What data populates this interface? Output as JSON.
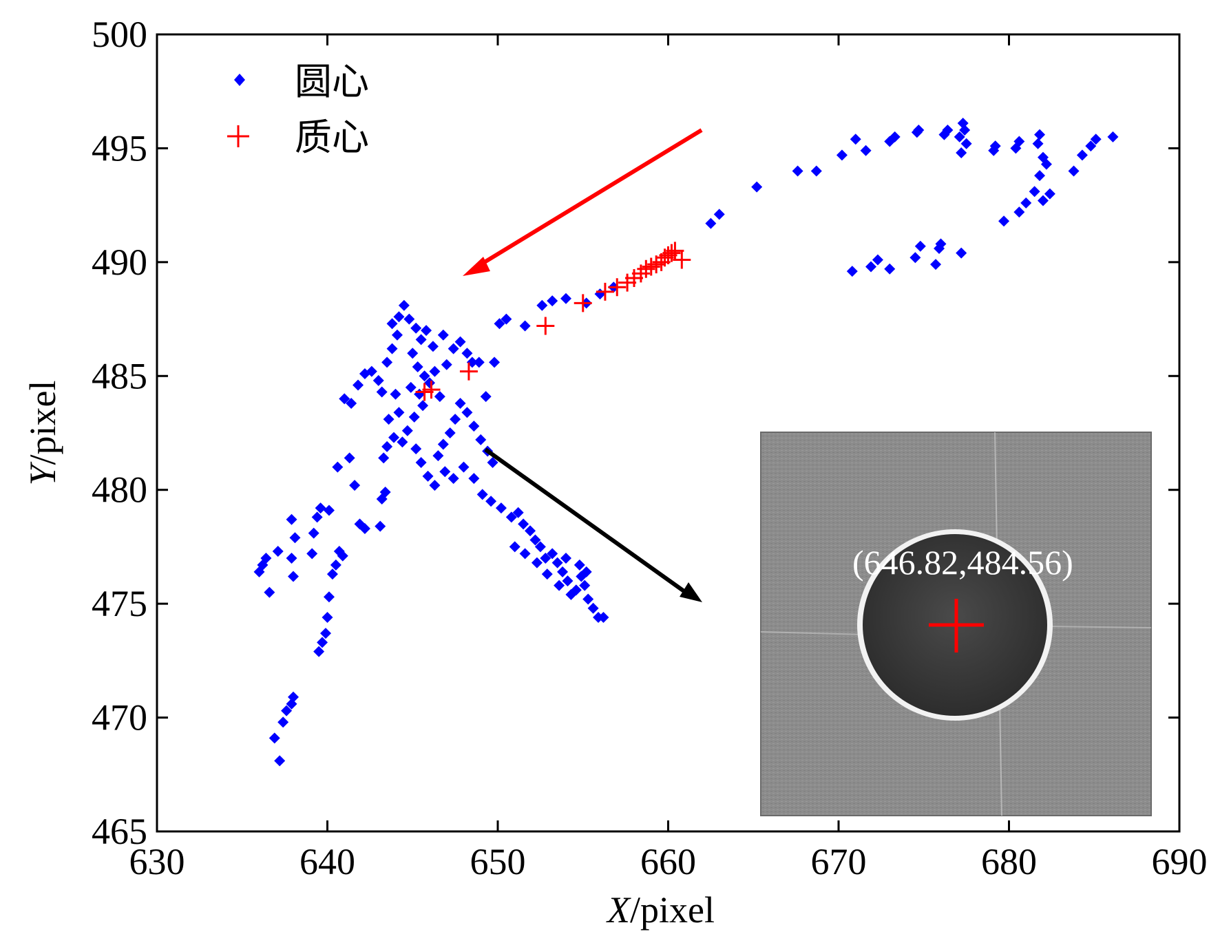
{
  "chart_data": {
    "type": "scatter",
    "xlabel_var": "X",
    "xlabel_unit": "/pixel",
    "ylabel_var": "Y",
    "ylabel_unit": "/pixel",
    "xlim": [
      630,
      690
    ],
    "ylim": [
      465,
      500
    ],
    "xticks": [
      "630",
      "640",
      "650",
      "660",
      "670",
      "680",
      "690"
    ],
    "yticks": [
      "465",
      "470",
      "475",
      "480",
      "485",
      "490",
      "495",
      "500"
    ],
    "grid": false,
    "legend_position": "top-left",
    "series": [
      {
        "name": "圆心",
        "marker": "diamond",
        "color": "#0000ff",
        "points": [
          [
            637.2,
            468.1
          ],
          [
            636.9,
            469.1
          ],
          [
            637.4,
            469.8
          ],
          [
            637.6,
            470.3
          ],
          [
            637.9,
            470.6
          ],
          [
            638.0,
            470.9
          ],
          [
            639.5,
            472.9
          ],
          [
            639.7,
            473.3
          ],
          [
            639.9,
            473.7
          ],
          [
            640.0,
            474.4
          ],
          [
            640.1,
            475.3
          ],
          [
            636.0,
            476.4
          ],
          [
            636.2,
            476.7
          ],
          [
            636.4,
            477.0
          ],
          [
            636.6,
            475.5
          ],
          [
            637.1,
            477.3
          ],
          [
            638.0,
            476.2
          ],
          [
            637.9,
            477.0
          ],
          [
            638.1,
            477.9
          ],
          [
            637.9,
            478.7
          ],
          [
            639.1,
            477.2
          ],
          [
            639.2,
            478.1
          ],
          [
            639.4,
            478.8
          ],
          [
            639.6,
            479.2
          ],
          [
            640.1,
            479.1
          ],
          [
            640.3,
            476.3
          ],
          [
            640.5,
            476.7
          ],
          [
            640.7,
            477.3
          ],
          [
            640.9,
            477.1
          ],
          [
            640.6,
            481.0
          ],
          [
            641.3,
            481.4
          ],
          [
            641.6,
            480.2
          ],
          [
            641.9,
            478.5
          ],
          [
            642.2,
            478.3
          ],
          [
            643.1,
            478.4
          ],
          [
            643.2,
            479.6
          ],
          [
            643.4,
            479.9
          ],
          [
            643.3,
            481.4
          ],
          [
            643.5,
            481.9
          ],
          [
            643.9,
            482.3
          ],
          [
            643.6,
            483.1
          ],
          [
            644.2,
            483.4
          ],
          [
            644.0,
            484.2
          ],
          [
            641.0,
            484.0
          ],
          [
            641.4,
            483.8
          ],
          [
            641.8,
            484.6
          ],
          [
            642.2,
            485.1
          ],
          [
            642.6,
            485.2
          ],
          [
            643.0,
            484.8
          ],
          [
            643.2,
            484.3
          ],
          [
            643.5,
            485.6
          ],
          [
            643.8,
            486.2
          ],
          [
            644.1,
            486.8
          ],
          [
            643.8,
            487.3
          ],
          [
            644.2,
            487.6
          ],
          [
            644.5,
            488.1
          ],
          [
            644.8,
            487.5
          ],
          [
            645.2,
            487.1
          ],
          [
            645.5,
            486.6
          ],
          [
            645.0,
            486.0
          ],
          [
            645.3,
            485.4
          ],
          [
            645.7,
            485.0
          ],
          [
            646.0,
            484.7
          ],
          [
            646.3,
            485.2
          ],
          [
            646.6,
            484.1
          ],
          [
            645.6,
            483.7
          ],
          [
            645.1,
            483.2
          ],
          [
            644.7,
            482.6
          ],
          [
            644.4,
            482.1
          ],
          [
            645.2,
            481.8
          ],
          [
            645.5,
            481.2
          ],
          [
            645.9,
            480.6
          ],
          [
            646.3,
            480.2
          ],
          [
            646.5,
            481.5
          ],
          [
            646.8,
            482.0
          ],
          [
            647.2,
            482.5
          ],
          [
            647.5,
            483.1
          ],
          [
            647.8,
            483.8
          ],
          [
            648.2,
            483.4
          ],
          [
            648.6,
            482.8
          ],
          [
            649.0,
            482.2
          ],
          [
            649.4,
            481.7
          ],
          [
            649.7,
            481.2
          ],
          [
            647.0,
            485.5
          ],
          [
            647.4,
            486.2
          ],
          [
            647.8,
            486.5
          ],
          [
            648.2,
            486.0
          ],
          [
            646.8,
            486.8
          ],
          [
            646.2,
            486.3
          ],
          [
            645.8,
            487.0
          ],
          [
            644.9,
            484.5
          ],
          [
            645.4,
            484.2
          ],
          [
            646.9,
            480.8
          ],
          [
            647.4,
            480.5
          ],
          [
            648.0,
            481.0
          ],
          [
            648.6,
            480.5
          ],
          [
            649.1,
            479.8
          ],
          [
            649.6,
            479.5
          ],
          [
            650.2,
            479.2
          ],
          [
            650.8,
            478.8
          ],
          [
            651.2,
            479.0
          ],
          [
            651.5,
            478.5
          ],
          [
            651.9,
            478.2
          ],
          [
            652.2,
            477.8
          ],
          [
            652.5,
            477.5
          ],
          [
            652.8,
            477.0
          ],
          [
            653.2,
            477.2
          ],
          [
            653.5,
            476.8
          ],
          [
            653.8,
            476.4
          ],
          [
            654.1,
            476.0
          ],
          [
            654.3,
            475.4
          ],
          [
            654.6,
            475.6
          ],
          [
            654.9,
            476.2
          ],
          [
            655.1,
            475.8
          ],
          [
            655.3,
            475.2
          ],
          [
            655.6,
            474.8
          ],
          [
            655.9,
            474.4
          ],
          [
            656.2,
            474.4
          ],
          [
            651.0,
            477.5
          ],
          [
            651.6,
            477.2
          ],
          [
            652.3,
            476.8
          ],
          [
            652.9,
            476.3
          ],
          [
            653.6,
            475.8
          ],
          [
            654.0,
            477.0
          ],
          [
            654.8,
            476.7
          ],
          [
            655.2,
            476.4
          ],
          [
            648.5,
            485.6
          ],
          [
            648.9,
            485.6
          ],
          [
            649.3,
            484.1
          ],
          [
            649.8,
            485.6
          ],
          [
            650.1,
            487.3
          ],
          [
            650.5,
            487.5
          ],
          [
            651.6,
            487.2
          ],
          [
            652.6,
            488.1
          ],
          [
            653.2,
            488.3
          ],
          [
            654.0,
            488.4
          ],
          [
            655.2,
            488.2
          ],
          [
            656.0,
            488.6
          ],
          [
            656.8,
            488.9
          ],
          [
            662.5,
            491.7
          ],
          [
            663.0,
            492.1
          ],
          [
            665.2,
            493.3
          ],
          [
            667.6,
            494.0
          ],
          [
            668.7,
            494.0
          ],
          [
            670.2,
            494.7
          ],
          [
            671.0,
            495.4
          ],
          [
            671.6,
            494.9
          ],
          [
            673.0,
            495.3
          ],
          [
            673.3,
            495.5
          ],
          [
            674.6,
            495.7
          ],
          [
            674.7,
            495.8
          ],
          [
            676.2,
            495.6
          ],
          [
            676.4,
            495.8
          ],
          [
            677.1,
            495.5
          ],
          [
            677.3,
            496.1
          ],
          [
            677.4,
            495.8
          ],
          [
            677.5,
            495.2
          ],
          [
            677.2,
            494.8
          ],
          [
            679.1,
            494.9
          ],
          [
            679.2,
            495.1
          ],
          [
            680.4,
            495.0
          ],
          [
            680.6,
            495.3
          ],
          [
            681.7,
            495.2
          ],
          [
            681.8,
            495.6
          ],
          [
            682.0,
            494.6
          ],
          [
            681.8,
            493.8
          ],
          [
            681.5,
            493.1
          ],
          [
            681.0,
            492.6
          ],
          [
            680.6,
            492.2
          ],
          [
            679.7,
            491.8
          ],
          [
            682.0,
            492.7
          ],
          [
            682.4,
            493.0
          ],
          [
            682.2,
            494.3
          ],
          [
            683.8,
            494.0
          ],
          [
            684.3,
            494.7
          ],
          [
            684.8,
            495.1
          ],
          [
            685.1,
            495.4
          ],
          [
            686.1,
            495.5
          ],
          [
            670.8,
            489.6
          ],
          [
            671.9,
            489.8
          ],
          [
            672.3,
            490.1
          ],
          [
            673.0,
            489.7
          ],
          [
            674.5,
            490.2
          ],
          [
            674.8,
            490.7
          ],
          [
            675.7,
            489.9
          ],
          [
            675.9,
            490.6
          ],
          [
            676.0,
            490.8
          ],
          [
            677.2,
            490.4
          ]
        ]
      },
      {
        "name": "质心",
        "marker": "plus",
        "color": "#ff0000",
        "points": [
          [
            645.7,
            484.3
          ],
          [
            646.1,
            484.4
          ],
          [
            648.3,
            485.2
          ],
          [
            652.8,
            487.2
          ],
          [
            655.0,
            488.2
          ],
          [
            656.3,
            488.7
          ],
          [
            657.0,
            488.9
          ],
          [
            657.6,
            489.1
          ],
          [
            658.0,
            489.3
          ],
          [
            658.4,
            489.5
          ],
          [
            658.7,
            489.7
          ],
          [
            659.0,
            489.8
          ],
          [
            659.3,
            489.9
          ],
          [
            659.6,
            490.0
          ],
          [
            659.8,
            490.2
          ],
          [
            660.0,
            490.3
          ],
          [
            660.2,
            490.4
          ],
          [
            660.4,
            490.5
          ],
          [
            660.8,
            490.1
          ]
        ]
      }
    ],
    "annotation_label": "(646.82,484.56)"
  },
  "colors": {
    "circle_center": "#0000ff",
    "centroid": "#ff0000",
    "arrow_red": "#ff0000",
    "arrow_black": "#000000"
  }
}
